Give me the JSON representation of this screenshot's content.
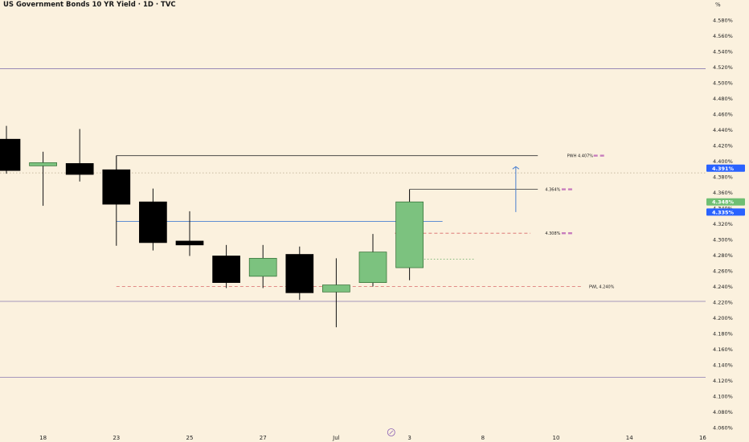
{
  "header": {
    "title": "US Government Bonds 10 YR Yield · 1D · TVC",
    "unit": "%"
  },
  "colors": {
    "background": "#fbf1de",
    "bull_candle": "#7cc27f",
    "bear_candle": "#000000",
    "level_red": "#d96a6a",
    "level_purple": "#8a7ab0",
    "level_blue": "#4a7fd0",
    "badge_blue": "#2962ff",
    "badge_green": "#6fbf73",
    "marker_magenta": "#c77dbd"
  },
  "chart_data": {
    "type": "candlestick",
    "title": "US Government Bonds 10 YR Yield · 1D · TVC",
    "ylim": [
      4.055,
      4.6
    ],
    "y_tick_labels": [
      "4.580%",
      "4.560%",
      "4.540%",
      "4.520%",
      "4.500%",
      "4.480%",
      "4.460%",
      "4.440%",
      "4.420%",
      "4.400%",
      "4.380%",
      "4.360%",
      "4.340%",
      "4.320%",
      "4.300%",
      "4.280%",
      "4.260%",
      "4.240%",
      "4.220%",
      "4.200%",
      "4.180%",
      "4.160%",
      "4.140%",
      "4.120%",
      "4.100%",
      "4.080%",
      "4.060%"
    ],
    "y_ticks": [
      4.58,
      4.56,
      4.54,
      4.52,
      4.5,
      4.48,
      4.46,
      4.44,
      4.42,
      4.4,
      4.38,
      4.36,
      4.34,
      4.32,
      4.3,
      4.28,
      4.26,
      4.24,
      4.22,
      4.2,
      4.18,
      4.16,
      4.14,
      4.12,
      4.1,
      4.08,
      4.06
    ],
    "x_tick_labels": [
      {
        "label": "18",
        "slot": 1
      },
      {
        "label": "23",
        "slot": 3
      },
      {
        "label": "25",
        "slot": 5
      },
      {
        "label": "27",
        "slot": 7
      },
      {
        "label": "Jul",
        "slot": 9
      },
      {
        "label": "3",
        "slot": 11
      },
      {
        "label": "8",
        "slot": 13
      },
      {
        "label": "10",
        "slot": 15
      },
      {
        "label": "14",
        "slot": 17
      },
      {
        "label": "16",
        "slot": 19
      }
    ],
    "candles": [
      {
        "slot": 0,
        "open": 4.428,
        "high": 4.445,
        "low": 4.384,
        "close": 4.388
      },
      {
        "slot": 1,
        "open": 4.394,
        "high": 4.412,
        "low": 4.343,
        "close": 4.398
      },
      {
        "slot": 2,
        "open": 4.397,
        "high": 4.441,
        "low": 4.374,
        "close": 4.383
      },
      {
        "slot": 3,
        "open": 4.389,
        "high": 4.407,
        "low": 4.292,
        "close": 4.345
      },
      {
        "slot": 4,
        "open": 4.348,
        "high": 4.365,
        "low": 4.286,
        "close": 4.296
      },
      {
        "slot": 5,
        "open": 4.298,
        "high": 4.336,
        "low": 4.279,
        "close": 4.293
      },
      {
        "slot": 6,
        "open": 4.279,
        "high": 4.293,
        "low": 4.238,
        "close": 4.245
      },
      {
        "slot": 7,
        "open": 4.253,
        "high": 4.293,
        "low": 4.238,
        "close": 4.276
      },
      {
        "slot": 8,
        "open": 4.281,
        "high": 4.291,
        "low": 4.223,
        "close": 4.232
      },
      {
        "slot": 9,
        "open": 4.233,
        "high": 4.276,
        "low": 4.188,
        "close": 4.242
      },
      {
        "slot": 10,
        "open": 4.245,
        "high": 4.307,
        "low": 4.24,
        "close": 4.284
      },
      {
        "slot": 11,
        "open": 4.264,
        "high": 4.364,
        "low": 4.248,
        "close": 4.348
      }
    ],
    "levels": [
      {
        "name": "purple-line-top",
        "value": 4.518,
        "style": "solid",
        "color": "#8a7ab0",
        "x_start_slot": -2,
        "x_end": "axis"
      },
      {
        "name": "purple-line-mid",
        "value": 4.221,
        "style": "solid",
        "color": "#8a7ab0",
        "x_start_slot": -2,
        "x_end": "axis"
      },
      {
        "name": "purple-line-bottom",
        "value": 4.124,
        "style": "solid",
        "color": "#8a7ab0",
        "x_start_slot": -2,
        "x_end": "axis"
      },
      {
        "name": "blue-line",
        "value": 4.323,
        "style": "solid",
        "color": "#4a7fd0",
        "x_start_slot": 3,
        "x_end_slot": 11.9
      },
      {
        "name": "pwh-line",
        "value": 4.407,
        "style": "solid",
        "color": "#333333",
        "x_start_slot": 3,
        "x_end_slot": 14.5
      },
      {
        "name": "recent-high-line",
        "value": 4.364,
        "style": "solid",
        "color": "#333333",
        "x_start_slot": 11,
        "x_end_slot": 14.5
      },
      {
        "name": "pwl-line",
        "value": 4.24,
        "style": "dashed",
        "color": "#d96a6a",
        "x_start_slot": 3,
        "x_end_slot": 15.7
      },
      {
        "name": "level-4308",
        "value": 4.308,
        "style": "dashed",
        "color": "#d96a6a",
        "x_start_slot": 10.6,
        "x_end_slot": 14.3
      },
      {
        "name": "last-price-line",
        "value": 4.385,
        "style": "dotted",
        "color": "#b9aa8f",
        "x_start_slot": -2,
        "x_end": "axis"
      },
      {
        "name": "close-dotted",
        "value": 4.275,
        "style": "dotted",
        "color": "#5aa55a",
        "x_start_slot": 11.4,
        "x_end_slot": 12.8
      }
    ],
    "level_labels": [
      {
        "text": "PWH 4.407%",
        "value": 4.407,
        "slot": 15.3,
        "marker": true
      },
      {
        "text": "4.364%",
        "value": 4.364,
        "slot": 14.7,
        "marker": true
      },
      {
        "text": "4.308%",
        "value": 4.308,
        "slot": 14.7,
        "marker": true
      },
      {
        "text": "PWL 4.240%",
        "value": 4.24,
        "slot": 15.9,
        "marker": false
      }
    ],
    "price_arrow": {
      "slot": 13.9,
      "from": 4.335,
      "to": 4.393
    },
    "axis_badges": [
      {
        "text": "4.391%",
        "value": 4.391,
        "color": "#2962ff"
      },
      {
        "text": "4.348%",
        "value": 4.348,
        "color": "#6fbf73"
      },
      {
        "text": "4.335%",
        "value": 4.335,
        "color": "#2962ff"
      }
    ]
  }
}
